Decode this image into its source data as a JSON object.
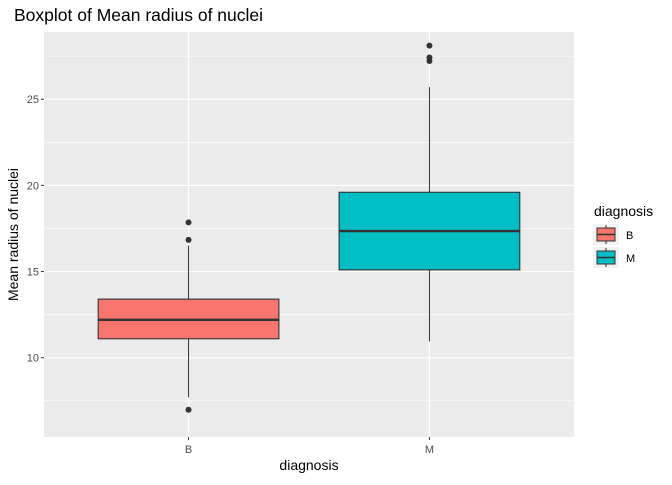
{
  "chart_data": {
    "type": "boxplot",
    "title": "Boxplot of Mean radius of nuclei",
    "xlabel": "diagnosis",
    "ylabel": "Mean radius of nuclei",
    "categories": [
      "B",
      "M"
    ],
    "ylim": [
      5.4,
      28.9
    ],
    "yticks": [
      10,
      15,
      20,
      25
    ],
    "grid": true,
    "legend": {
      "title": "diagnosis",
      "position": "right",
      "items": [
        {
          "label": "B",
          "color": "#F8766D"
        },
        {
          "label": "M",
          "color": "#00BFC4"
        }
      ]
    },
    "boxes": [
      {
        "category": "B",
        "color": "#F8766D",
        "whisker_low": 7.7,
        "q1": 11.1,
        "median": 12.2,
        "q3": 13.4,
        "whisker_high": 16.5,
        "outliers": [
          6.98,
          16.84,
          17.85
        ]
      },
      {
        "category": "M",
        "color": "#00BFC4",
        "whisker_low": 10.95,
        "q1": 15.1,
        "median": 17.35,
        "q3": 19.6,
        "whisker_high": 25.7,
        "outliers": [
          27.22,
          27.42,
          28.11
        ]
      }
    ]
  },
  "colors": {
    "panel_background": "#EBEBEB",
    "grid_major": "#FFFFFF",
    "box_outline": "#333333",
    "text": "#000000",
    "tick_text": "#4D4D4D"
  }
}
